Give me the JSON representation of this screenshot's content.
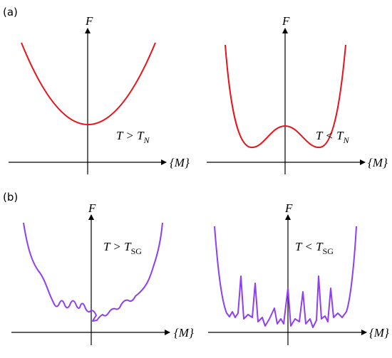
{
  "panels": [
    {
      "tag": "(a)",
      "plots": [
        {
          "y_label": "F",
          "x_label": "{M}",
          "condition": {
            "main": "T > T",
            "sub": "N"
          }
        },
        {
          "y_label": "F",
          "x_label": "{M}",
          "condition": {
            "main": "T < T",
            "sub": "N"
          }
        }
      ]
    },
    {
      "tag": "(b)",
      "plots": [
        {
          "y_label": "F",
          "x_label": "{M}",
          "condition": {
            "main": "T > T",
            "sub": "SG"
          }
        },
        {
          "y_label": "F",
          "x_label": "{M}",
          "condition": {
            "main": "T < T",
            "sub": "SG"
          }
        }
      ]
    }
  ]
}
